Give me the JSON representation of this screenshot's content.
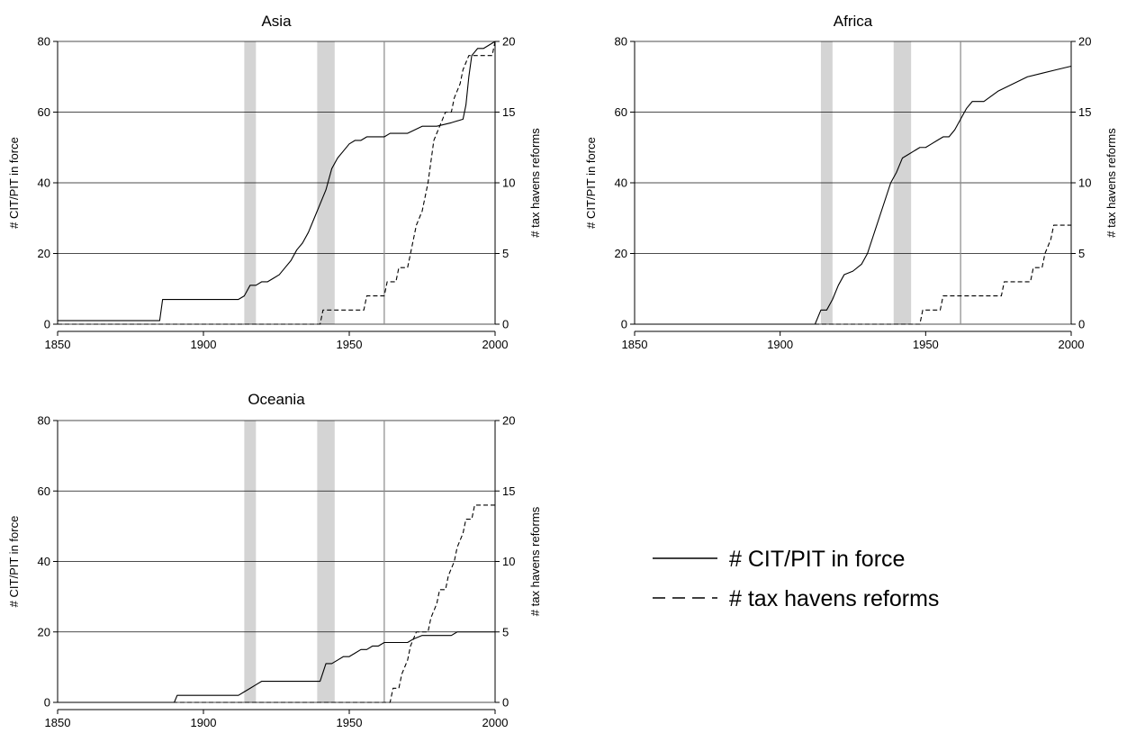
{
  "chart_data": [
    {
      "type": "line",
      "title": "Asia",
      "xlabel": "",
      "ylabel": "# CIT/PIT in force",
      "y2label": "# tax havens reforms",
      "xlim": [
        1850,
        2000
      ],
      "ylim": [
        0,
        80
      ],
      "y2lim": [
        0,
        20
      ],
      "xticks": [
        "1850",
        "1900",
        "1950",
        "2000"
      ],
      "yticks": [
        "0",
        "20",
        "40",
        "60",
        "80"
      ],
      "y2ticks": [
        "0",
        "5",
        "10",
        "15",
        "20"
      ],
      "grid": true,
      "shaded_periods": [
        [
          1914,
          1918
        ],
        [
          1939,
          1945
        ]
      ],
      "reference_line_x": 1962,
      "series": [
        {
          "name": "# CIT/PIT in force",
          "axis": "left",
          "style": "solid",
          "x": [
            1850,
            1885,
            1886,
            1912,
            1914,
            1916,
            1918,
            1920,
            1922,
            1924,
            1926,
            1928,
            1930,
            1932,
            1934,
            1936,
            1938,
            1940,
            1942,
            1944,
            1946,
            1948,
            1950,
            1952,
            1954,
            1956,
            1958,
            1960,
            1962,
            1964,
            1970,
            1975,
            1980,
            1985,
            1989,
            1990,
            1991,
            1992,
            1994,
            1996,
            2000
          ],
          "y": [
            1,
            1,
            7,
            7,
            8,
            11,
            11,
            12,
            12,
            13,
            14,
            16,
            18,
            21,
            23,
            26,
            30,
            34,
            38,
            44,
            47,
            49,
            51,
            52,
            52,
            53,
            53,
            53,
            53,
            54,
            54,
            56,
            56,
            57,
            58,
            62,
            70,
            76,
            78,
            78,
            80
          ]
        },
        {
          "name": "# tax havens reforms",
          "axis": "right",
          "style": "dashed",
          "x": [
            1850,
            1940,
            1941,
            1955,
            1956,
            1962,
            1963,
            1966,
            1967,
            1970,
            1971,
            1973,
            1975,
            1977,
            1979,
            1981,
            1983,
            1985,
            1986,
            1988,
            1989,
            1991,
            1993,
            1996,
            1999,
            2000
          ],
          "y": [
            0,
            0,
            1,
            1,
            2,
            2,
            3,
            3,
            4,
            4,
            5,
            7,
            8,
            10,
            13,
            14,
            15,
            15,
            16,
            17,
            18,
            19,
            19,
            19,
            19,
            20
          ]
        }
      ]
    },
    {
      "type": "line",
      "title": "Africa",
      "xlabel": "",
      "ylabel": "# CIT/PIT in force",
      "y2label": "# tax havens reforms",
      "xlim": [
        1850,
        2000
      ],
      "ylim": [
        0,
        80
      ],
      "y2lim": [
        0,
        20
      ],
      "xticks": [
        "1850",
        "1900",
        "1950",
        "2000"
      ],
      "yticks": [
        "0",
        "20",
        "40",
        "60",
        "80"
      ],
      "y2ticks": [
        "0",
        "5",
        "10",
        "15",
        "20"
      ],
      "grid": true,
      "shaded_periods": [
        [
          1914,
          1918
        ],
        [
          1939,
          1945
        ]
      ],
      "reference_line_x": 1962,
      "series": [
        {
          "name": "# CIT/PIT in force",
          "axis": "left",
          "style": "solid",
          "x": [
            1850,
            1912,
            1914,
            1916,
            1918,
            1920,
            1922,
            1925,
            1928,
            1930,
            1932,
            1934,
            1936,
            1938,
            1940,
            1942,
            1944,
            1946,
            1948,
            1950,
            1952,
            1954,
            1956,
            1958,
            1960,
            1962,
            1964,
            1966,
            1970,
            1975,
            1980,
            1985,
            1990,
            1995,
            2000
          ],
          "y": [
            0,
            0,
            4,
            4,
            7,
            11,
            14,
            15,
            17,
            20,
            25,
            30,
            35,
            40,
            43,
            47,
            48,
            49,
            50,
            50,
            51,
            52,
            53,
            53,
            55,
            58,
            61,
            63,
            63,
            66,
            68,
            70,
            71,
            72,
            73
          ]
        },
        {
          "name": "# tax havens reforms",
          "axis": "right",
          "style": "dashed",
          "x": [
            1850,
            1948,
            1949,
            1955,
            1956,
            1976,
            1977,
            1986,
            1987,
            1990,
            1991,
            1993,
            1994,
            2000
          ],
          "y": [
            0,
            0,
            1,
            1,
            2,
            2,
            3,
            3,
            4,
            4,
            5,
            6,
            7,
            7
          ]
        }
      ]
    },
    {
      "type": "line",
      "title": "Oceania",
      "xlabel": "",
      "ylabel": "# CIT/PIT in force",
      "y2label": "# tax havens reforms",
      "xlim": [
        1850,
        2000
      ],
      "ylim": [
        0,
        80
      ],
      "y2lim": [
        0,
        20
      ],
      "xticks": [
        "1850",
        "1900",
        "1950",
        "2000"
      ],
      "yticks": [
        "0",
        "20",
        "40",
        "60",
        "80"
      ],
      "y2ticks": [
        "0",
        "5",
        "10",
        "15",
        "20"
      ],
      "grid": true,
      "shaded_periods": [
        [
          1914,
          1918
        ],
        [
          1939,
          1945
        ]
      ],
      "reference_line_x": 1962,
      "series": [
        {
          "name": "# CIT/PIT in force",
          "axis": "left",
          "style": "solid",
          "x": [
            1850,
            1890,
            1891,
            1912,
            1914,
            1916,
            1918,
            1920,
            1925,
            1930,
            1935,
            1940,
            1942,
            1944,
            1946,
            1948,
            1950,
            1952,
            1954,
            1956,
            1958,
            1960,
            1962,
            1966,
            1970,
            1972,
            1975,
            1980,
            1985,
            1987,
            1990,
            1995,
            2000
          ],
          "y": [
            0,
            0,
            2,
            2,
            3,
            4,
            5,
            6,
            6,
            6,
            6,
            6,
            11,
            11,
            12,
            13,
            13,
            14,
            15,
            15,
            16,
            16,
            17,
            17,
            17,
            18,
            19,
            19,
            19,
            20,
            20,
            20,
            20
          ]
        },
        {
          "name": "# tax havens reforms",
          "axis": "right",
          "style": "dashed",
          "x": [
            1850,
            1964,
            1965,
            1967,
            1968,
            1970,
            1971,
            1973,
            1974,
            1977,
            1978,
            1980,
            1981,
            1983,
            1984,
            1986,
            1987,
            1989,
            1990,
            1992,
            1993,
            1995,
            2000
          ],
          "y": [
            0,
            0,
            1,
            1,
            2,
            3,
            4,
            5,
            5,
            5,
            6,
            7,
            8,
            8,
            9,
            10,
            11,
            12,
            13,
            13,
            14,
            14,
            14
          ]
        }
      ]
    }
  ],
  "legend": {
    "placement": "bottom-right",
    "items": [
      {
        "label": "# CIT/PIT in force",
        "style": "solid"
      },
      {
        "label": "# tax havens reforms",
        "style": "dashed"
      }
    ]
  }
}
